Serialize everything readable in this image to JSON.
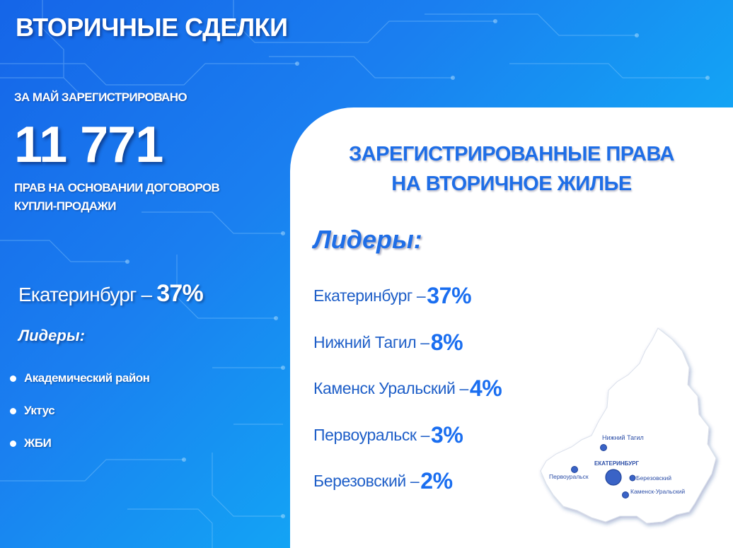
{
  "title": "ВТОРИЧНЫЕ СДЕЛКИ",
  "registered_label": "ЗА МАЙ ЗАРЕГИСТРИРОВАНО",
  "registered_count": "11 771",
  "registered_desc_line1": "ПРАВ НА ОСНОВАНИИ ДОГОВОРОВ",
  "registered_desc_line2": "КУПЛИ-ПРОДАЖИ",
  "ekb": {
    "name": "Екатеринбург – ",
    "pct": "37%"
  },
  "left_leaders_label": "Лидеры:",
  "districts": [
    "Академический район",
    "Уктус",
    "ЖБИ"
  ],
  "panel": {
    "title_line1": "ЗАРЕГИСТРИРОВАННЫЕ ПРАВА",
    "title_line2": "НА ВТОРИЧНОЕ ЖИЛЬЕ",
    "leaders_label": "Лидеры:",
    "cities": [
      {
        "name": "Екатеринбург – ",
        "pct": "37%"
      },
      {
        "name": "Нижний Тагил – ",
        "pct": "8%"
      },
      {
        "name": "Каменск Уральский – ",
        "pct": "4%"
      },
      {
        "name": "Первоуральск – ",
        "pct": "3%"
      },
      {
        "name": "Березовский – ",
        "pct": "2%"
      }
    ]
  },
  "map": {
    "labels": {
      "nizhny_tagil": "Нижний Тагил",
      "ekaterinburg": "ЕКАТЕРИНБУРГ",
      "pervouralsk": "Первоуральск",
      "berezovsky": "Березовский",
      "kamensk": "Каменск-Уральский"
    }
  },
  "colors": {
    "accent": "#1f6ee6",
    "bg_start": "#1565e8",
    "bg_end": "#08c6f7",
    "map_fill": "#ffffff",
    "marker": "#3a63c6"
  }
}
